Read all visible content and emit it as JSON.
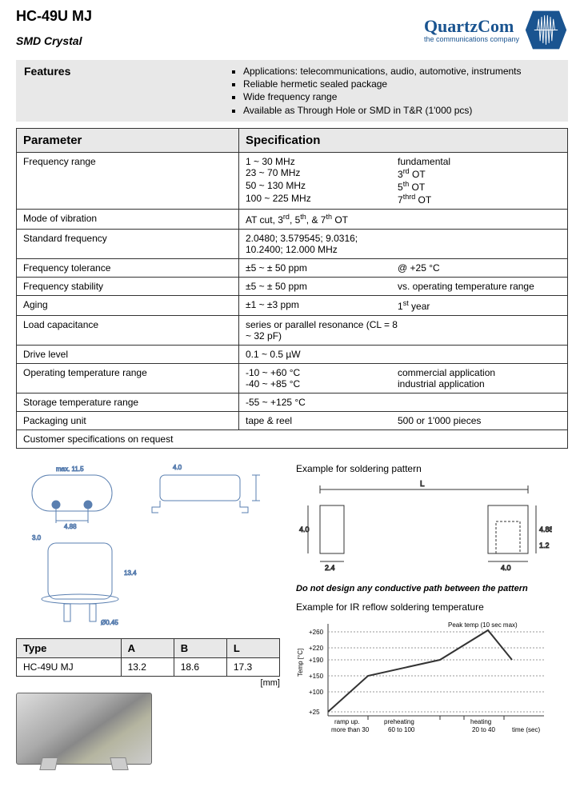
{
  "product": {
    "title": "HC-49U MJ",
    "subtitle": "SMD Crystal"
  },
  "brand": {
    "name": "QuartzCom",
    "tagline": "the communications company",
    "logo_color": "#1a5490"
  },
  "features": {
    "label": "Features",
    "items": [
      "Applications: telecommunications, audio, automotive, instruments",
      "Reliable hermetic sealed package",
      "Wide frequency range",
      "Available as Through Hole or SMD in T&R (1'000 pcs)"
    ]
  },
  "spec_headers": {
    "param": "Parameter",
    "spec": "Specification"
  },
  "specs": [
    {
      "param": "Frequency range",
      "lines": [
        {
          "val": "1 ~ 30 MHz",
          "note": "fundamental"
        },
        {
          "val": "23 ~ 70 MHz",
          "note": "3<sup>rd</sup> OT"
        },
        {
          "val": "50 ~ 130 MHz",
          "note": "5<sup>th</sup> OT"
        },
        {
          "val": "100 ~ 225 MHz",
          "note": "7<sup>thrd</sup> OT"
        }
      ]
    },
    {
      "param": "Mode of vibration",
      "lines": [
        {
          "val": "AT cut, 3<sup>rd</sup>, 5<sup>th</sup>, & 7<sup>th</sup> OT",
          "note": ""
        }
      ]
    },
    {
      "param": "Standard frequency",
      "lines": [
        {
          "val": "2.0480;  3.579545;  9.0316;  10.2400;  12.000 MHz",
          "note": ""
        }
      ]
    },
    {
      "param": "Frequency tolerance",
      "lines": [
        {
          "val": "±5 ~ ± 50 ppm",
          "note": "@ +25 °C"
        }
      ]
    },
    {
      "param": "Frequency stability",
      "lines": [
        {
          "val": "±5 ~ ± 50 ppm",
          "note": "vs. operating temperature range"
        }
      ]
    },
    {
      "param": "Aging",
      "lines": [
        {
          "val": "±1 ~ ±3 ppm",
          "note": "1<sup>st</sup> year"
        }
      ]
    },
    {
      "param": "Load capacitance",
      "lines": [
        {
          "val": "series or parallel resonance (CL = 8 ~ 32 pF)",
          "note": ""
        }
      ]
    },
    {
      "param": "Drive level",
      "lines": [
        {
          "val": "0.1 ~ 0.5 µW",
          "note": ""
        }
      ]
    },
    {
      "param": "Operating temperature range",
      "lines": [
        {
          "val": "-10 ~ +60 °C",
          "note": "commercial application"
        },
        {
          "val": "-40 ~ +85 °C",
          "note": "industrial application"
        }
      ]
    },
    {
      "param": "Storage temperature range",
      "lines": [
        {
          "val": "-55 ~ +125 °C",
          "note": ""
        }
      ]
    },
    {
      "param": "Packaging unit",
      "lines": [
        {
          "val": "tape & reel",
          "note": "500 or 1'000 pieces"
        }
      ]
    },
    {
      "param": "Customer specifications on request",
      "lines": [],
      "full": true
    }
  ],
  "dim_table": {
    "headers": [
      "Type",
      "A",
      "B",
      "L"
    ],
    "row": [
      "HC-49U MJ",
      "13.2",
      "18.6",
      "17.3"
    ],
    "unit": "[mm]"
  },
  "solder": {
    "pattern_label": "Example for soldering pattern",
    "warn": "Do not design any conductive path between the pattern",
    "reflow_label": "Example for IR reflow soldering temperature"
  },
  "pattern_dims": {
    "L": "L",
    "h": "4.0",
    "w1": "2.4",
    "w2": "4.0",
    "gh": "4.88",
    "g2": "1.2"
  },
  "reflow": {
    "y_ticks": [
      "+25",
      "+100",
      "+150",
      "+190",
      "+220",
      "+260"
    ],
    "x_labels": [
      "ramp up.",
      "preheating",
      "",
      "heating",
      ""
    ],
    "x_times": [
      "more than 30",
      "60 to 100",
      "",
      "20 to 40",
      "time (sec)"
    ],
    "peak": "Peak temp (10 sec max)",
    "ylabel": "Temp [°C]",
    "line_color": "#333",
    "grid_color": "#999"
  },
  "tech_draw": {
    "top_w": "max. 11.5",
    "top_pin": "4.88",
    "side_h": "4.0",
    "front_pin": "3.0",
    "front_h": "13.4",
    "lead_d": "Ø0.45",
    "line_color": "#5a7fb0"
  }
}
